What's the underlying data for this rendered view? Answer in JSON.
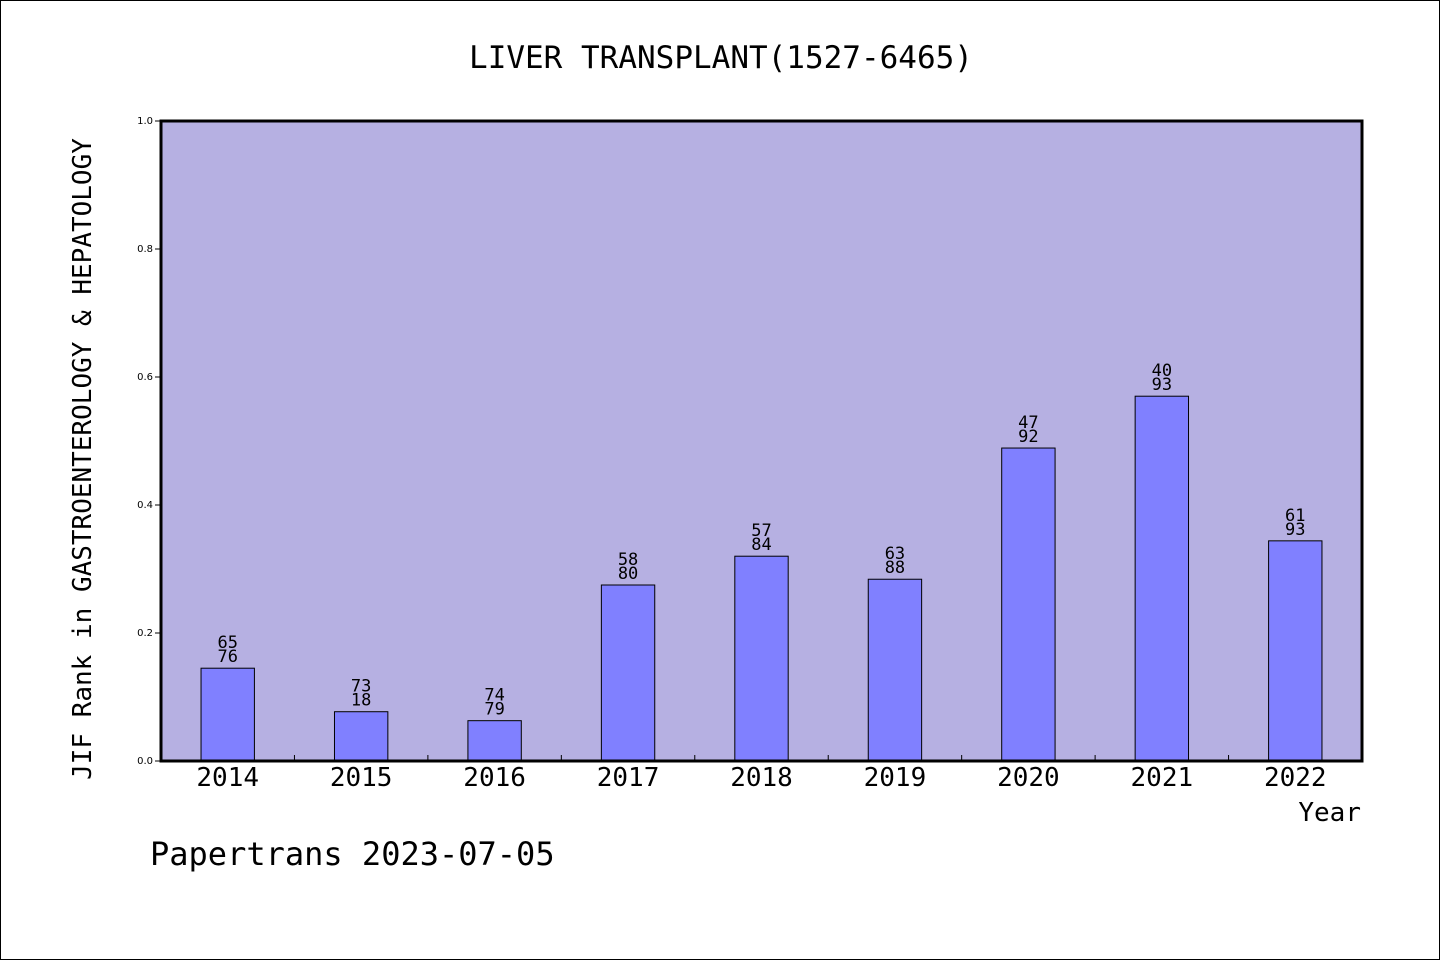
{
  "chart_data": {
    "type": "bar",
    "title": "LIVER TRANSPLANT(1527-6465)",
    "xlabel": "Year",
    "ylabel": "JIF Rank in GASTROENTEROLOGY & HEPATOLOGY",
    "ylim": [
      0,
      1.0
    ],
    "yticks": [
      "0.0",
      "0.2",
      "0.4",
      "0.6",
      "0.8",
      "1.0"
    ],
    "categories": [
      "2014",
      "2015",
      "2016",
      "2017",
      "2018",
      "2019",
      "2020",
      "2021",
      "2022"
    ],
    "values": [
      0.145,
      0.077,
      0.063,
      0.275,
      0.32,
      0.284,
      0.489,
      0.57,
      0.344
    ],
    "bar_labels": [
      {
        "top": "65",
        "bottom": "76"
      },
      {
        "top": "73",
        "bottom": "18"
      },
      {
        "top": "74",
        "bottom": "79"
      },
      {
        "top": "58",
        "bottom": "80"
      },
      {
        "top": "57",
        "bottom": "84"
      },
      {
        "top": "63",
        "bottom": "88"
      },
      {
        "top": "47",
        "bottom": "92"
      },
      {
        "top": "40",
        "bottom": "93"
      },
      {
        "top": "61",
        "bottom": "93"
      }
    ],
    "grid": false,
    "colors": {
      "plot_background": "#b6b0e2",
      "bar_fill": "#8080ff",
      "bar_stroke": "#000000"
    }
  },
  "footer": {
    "credit": "Papertrans 2023-07-05"
  }
}
